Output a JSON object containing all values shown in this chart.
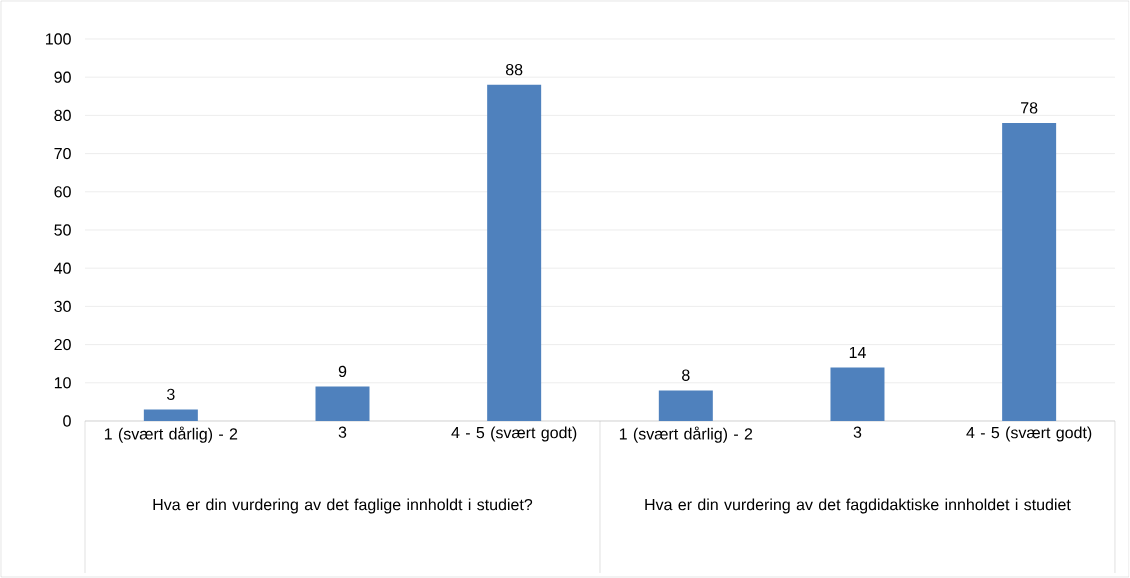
{
  "chart_data": {
    "type": "bar",
    "categories": [
      "1 (svært dårlig) - 2",
      "3",
      "4 - 5 (svært godt)",
      "1 (svært dårlig) - 2",
      "3",
      "4 - 5 (svært godt)"
    ],
    "values": [
      3,
      9,
      88,
      8,
      14,
      78
    ],
    "color": "#4f81bd",
    "ylim": [
      0,
      100
    ],
    "yticks": [
      0,
      10,
      20,
      30,
      40,
      50,
      60,
      70,
      80,
      90,
      100
    ],
    "grid": "y",
    "data_labels": true,
    "annotations": [
      "Hva er din vurdering av det faglige innholdt i studiet?",
      "Hva er din vurdering av det fagdidaktiske innholdet i studiet"
    ]
  }
}
